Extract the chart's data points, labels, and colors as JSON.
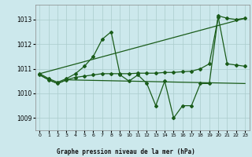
{
  "bg_color": "#cce8ec",
  "grid_color": "#aacccc",
  "line_color": "#1a5c1a",
  "title": "Graphe pression niveau de la mer (hPa)",
  "xlim": [
    -0.5,
    23.5
  ],
  "ylim": [
    1008.5,
    1013.6
  ],
  "yticks": [
    1009,
    1010,
    1011,
    1012,
    1013
  ],
  "xticks": [
    0,
    1,
    2,
    3,
    4,
    5,
    6,
    7,
    8,
    9,
    10,
    11,
    12,
    13,
    14,
    15,
    16,
    17,
    18,
    19,
    20,
    21,
    22,
    23
  ],
  "series": [
    {
      "x": [
        0,
        1,
        2,
        3,
        4,
        5,
        6,
        7,
        8,
        9,
        10,
        11,
        12,
        13,
        14,
        15,
        16,
        17,
        18,
        19,
        20,
        21,
        22,
        23
      ],
      "y": [
        1010.8,
        1010.6,
        1010.45,
        1010.6,
        1010.8,
        1011.1,
        1011.5,
        1012.2,
        1012.5,
        1010.75,
        1010.5,
        1010.75,
        1010.4,
        1009.5,
        1010.5,
        1009.0,
        1009.5,
        1009.5,
        1010.4,
        1010.4,
        1013.15,
        1013.05,
        1013.0,
        1013.05
      ],
      "marker": "D",
      "markersize": 2,
      "linewidth": 0.9
    },
    {
      "x": [
        0,
        23
      ],
      "y": [
        1010.8,
        1013.05
      ],
      "marker": null,
      "markersize": 0,
      "linewidth": 0.9
    },
    {
      "x": [
        0,
        1,
        2,
        3,
        4,
        5,
        6,
        7,
        8,
        9,
        10,
        11,
        12,
        13,
        14,
        15,
        16,
        17,
        18,
        19,
        20,
        21,
        22,
        23
      ],
      "y": [
        1010.75,
        1010.55,
        1010.4,
        1010.55,
        1010.65,
        1010.7,
        1010.75,
        1010.8,
        1010.8,
        1010.8,
        1010.8,
        1010.82,
        1010.82,
        1010.82,
        1010.85,
        1010.85,
        1010.88,
        1010.9,
        1011.0,
        1011.2,
        1013.1,
        1011.2,
        1011.15,
        1011.1
      ],
      "marker": "D",
      "markersize": 2,
      "linewidth": 0.9
    },
    {
      "x": [
        0,
        1,
        2,
        3,
        23
      ],
      "y": [
        1010.75,
        1010.55,
        1010.4,
        1010.55,
        1010.4
      ],
      "marker": null,
      "markersize": 0,
      "linewidth": 0.9
    }
  ]
}
